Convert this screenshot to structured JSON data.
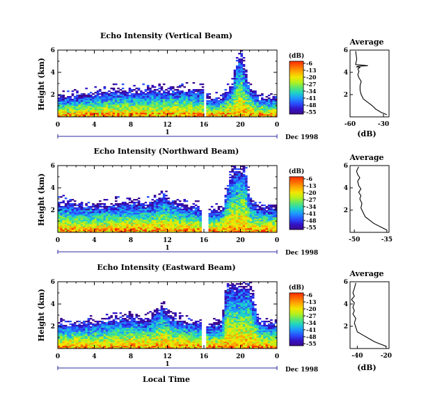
{
  "figure": {
    "xlabel": "Local Time",
    "date_label": "Dec 1998",
    "day_marker_label": "1"
  },
  "colorbar": {
    "unit": "(dB)",
    "ticks": [
      "-6",
      "-13",
      "-20",
      "-27",
      "-34",
      "-41",
      "-48",
      "-55"
    ],
    "colors": [
      "#ff2a00",
      "#ff6a00",
      "#ffaa00",
      "#f2e600",
      "#b4f01e",
      "#5ae66e",
      "#1ed2c8",
      "#1e96ff",
      "#2850ff",
      "#3214c8",
      "#3c0a8c"
    ]
  },
  "chart_data": [
    {
      "type": "heatmap",
      "title": "Echo Intensity (Vertical Beam)",
      "xlabel": "",
      "ylabel": "Height (km)",
      "xlim": [
        0,
        24
      ],
      "ylim": [
        0,
        6
      ],
      "xticks": [
        "0",
        "4",
        "8",
        "12",
        "16",
        "20",
        "0"
      ],
      "yticks": [
        "2",
        "4",
        "6"
      ],
      "gap_hours": [
        16,
        16.3
      ],
      "layer_top_km": [
        [
          0,
          1.8
        ],
        [
          2,
          1.9
        ],
        [
          4,
          2.1
        ],
        [
          6,
          2.4
        ],
        [
          8,
          2.3
        ],
        [
          10,
          2.4
        ],
        [
          12,
          2.4
        ],
        [
          14,
          2.5
        ],
        [
          15.8,
          2.5
        ],
        [
          16.3,
          1.6
        ],
        [
          18,
          1.8
        ],
        [
          19,
          2.8
        ],
        [
          20,
          6.0
        ],
        [
          21,
          2.8
        ],
        [
          22,
          1.8
        ],
        [
          24,
          1.8
        ]
      ]
    },
    {
      "type": "line",
      "title": "Average",
      "xlabel": "(dB)",
      "ylabel": "",
      "xticks": [
        "-60",
        "-30"
      ],
      "yticks": [
        "2",
        "4",
        "6"
      ],
      "xlim": [
        -60,
        -25
      ],
      "ylim": [
        0,
        6
      ],
      "x": [
        -27,
        -32,
        -37,
        -40,
        -44,
        -48,
        -50,
        -51,
        -51,
        -50,
        -52,
        -53,
        -52,
        -53,
        -51,
        -54,
        -53,
        -44,
        -55,
        -54,
        -55
      ],
      "y": [
        0.2,
        0.4,
        0.7,
        1.0,
        1.3,
        1.6,
        2.0,
        2.4,
        2.8,
        3.2,
        3.5,
        3.8,
        4.1,
        4.3,
        4.45,
        4.5,
        4.55,
        4.6,
        4.7,
        5.2,
        5.9
      ]
    },
    {
      "type": "heatmap",
      "title": "Echo Intensity (Northward Beam)",
      "xlabel": "",
      "ylabel": "Height (km)",
      "xlim": [
        0,
        24
      ],
      "ylim": [
        0,
        6
      ],
      "xticks": [
        "0",
        "4",
        "8",
        "12",
        "16",
        "20",
        "0"
      ],
      "yticks": [
        "2",
        "4",
        "6"
      ],
      "gap_hours": [
        15.8,
        16.4
      ],
      "layer_top_km": [
        [
          0,
          2.8
        ],
        [
          2,
          2.6
        ],
        [
          4,
          2.4
        ],
        [
          6,
          2.6
        ],
        [
          8,
          2.8
        ],
        [
          10,
          2.6
        ],
        [
          11.5,
          3.4
        ],
        [
          12.5,
          2.9
        ],
        [
          14,
          2.4
        ],
        [
          15.5,
          2.3
        ],
        [
          16.4,
          1.8
        ],
        [
          18,
          2.2
        ],
        [
          19,
          5.5
        ],
        [
          20.5,
          6.0
        ],
        [
          21,
          3.0
        ],
        [
          22,
          2.4
        ],
        [
          24,
          2.2
        ]
      ]
    },
    {
      "type": "line",
      "title": "Average",
      "xlabel": "",
      "ylabel": "",
      "xticks": [
        "-50",
        "-35"
      ],
      "yticks": [
        "2",
        "4",
        "6"
      ],
      "xlim": [
        -52,
        -34
      ],
      "ylim": [
        0,
        6
      ],
      "x": [
        -35,
        -38,
        -41,
        -43,
        -45,
        -46,
        -47,
        -46.5,
        -47.5,
        -47,
        -48,
        -47,
        -48,
        -48.5,
        -47.5,
        -48.5,
        -49,
        -48
      ],
      "y": [
        0.2,
        0.5,
        0.8,
        1.1,
        1.4,
        1.8,
        2.2,
        2.6,
        3.0,
        3.3,
        3.6,
        3.9,
        4.2,
        4.6,
        4.9,
        5.2,
        5.5,
        5.9
      ]
    },
    {
      "type": "heatmap",
      "title": "Echo Intensity (Eastward Beam)",
      "xlabel": "",
      "ylabel": "Height (km)",
      "xlim": [
        0,
        24
      ],
      "ylim": [
        0,
        6
      ],
      "xticks": [
        "0",
        "4",
        "8",
        "12",
        "16",
        "20",
        "0"
      ],
      "yticks": [
        "2",
        "4",
        "6"
      ],
      "gap_hours": [
        15.8,
        16.3
      ],
      "layer_top_km": [
        [
          0,
          2.2
        ],
        [
          2,
          2.3
        ],
        [
          4,
          2.4
        ],
        [
          6,
          2.7
        ],
        [
          8,
          2.9
        ],
        [
          10,
          2.6
        ],
        [
          11.5,
          4.0
        ],
        [
          12.5,
          2.8
        ],
        [
          14,
          2.5
        ],
        [
          15.8,
          2.4
        ],
        [
          16.3,
          2.0
        ],
        [
          18,
          2.4
        ],
        [
          18.5,
          5.7
        ],
        [
          21,
          6.0
        ],
        [
          22,
          2.5
        ],
        [
          24,
          2.3
        ]
      ]
    },
    {
      "type": "line",
      "title": "Average",
      "xlabel": "(dB)",
      "ylabel": "",
      "xticks": [
        "-40",
        "-20"
      ],
      "yticks": [
        "2",
        "4",
        "6"
      ],
      "xlim": [
        -45,
        -18
      ],
      "ylim": [
        0,
        6
      ],
      "x": [
        -20,
        -24,
        -28,
        -32,
        -36,
        -40,
        -41,
        -42,
        -41,
        -43,
        -42,
        -43,
        -42,
        -44,
        -42,
        -43,
        -42,
        -41
      ],
      "y": [
        0.2,
        0.4,
        0.6,
        0.9,
        1.2,
        1.5,
        1.9,
        2.3,
        2.7,
        3.1,
        3.4,
        3.7,
        4.1,
        4.4,
        4.7,
        5.0,
        5.4,
        5.9
      ]
    }
  ]
}
